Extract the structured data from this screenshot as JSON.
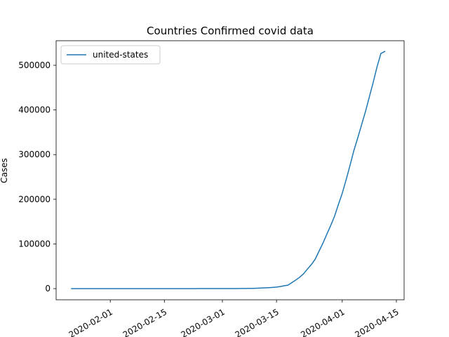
{
  "chart_data": {
    "type": "line",
    "title": "Countries Confirmed covid data",
    "xlabel": "",
    "ylabel": "Cases",
    "xlim": [
      "2020-01-18",
      "2020-04-17"
    ],
    "ylim": [
      -25000,
      555000
    ],
    "xticks": [
      "2020-02-01",
      "2020-02-15",
      "2020-03-01",
      "2020-03-15",
      "2020-04-01",
      "2020-04-15"
    ],
    "yticks": [
      0,
      100000,
      200000,
      300000,
      400000,
      500000
    ],
    "ytick_labels": [
      "0",
      "100000",
      "200000",
      "300000",
      "400000",
      "500000"
    ],
    "legend_position": "upper-left",
    "grid": false,
    "series": [
      {
        "name": "united-states",
        "color": "#1f77b4",
        "points": [
          [
            "2020-01-22",
            1
          ],
          [
            "2020-01-23",
            1
          ],
          [
            "2020-01-24",
            2
          ],
          [
            "2020-01-25",
            2
          ],
          [
            "2020-01-26",
            5
          ],
          [
            "2020-01-27",
            5
          ],
          [
            "2020-01-28",
            5
          ],
          [
            "2020-01-29",
            5
          ],
          [
            "2020-01-30",
            5
          ],
          [
            "2020-01-31",
            7
          ],
          [
            "2020-02-01",
            8
          ],
          [
            "2020-02-02",
            8
          ],
          [
            "2020-02-03",
            11
          ],
          [
            "2020-02-04",
            11
          ],
          [
            "2020-02-05",
            11
          ],
          [
            "2020-02-06",
            11
          ],
          [
            "2020-02-07",
            11
          ],
          [
            "2020-02-08",
            11
          ],
          [
            "2020-02-09",
            11
          ],
          [
            "2020-02-10",
            11
          ],
          [
            "2020-02-11",
            12
          ],
          [
            "2020-02-12",
            12
          ],
          [
            "2020-02-13",
            13
          ],
          [
            "2020-02-14",
            13
          ],
          [
            "2020-02-15",
            13
          ],
          [
            "2020-02-16",
            13
          ],
          [
            "2020-02-17",
            13
          ],
          [
            "2020-02-18",
            13
          ],
          [
            "2020-02-19",
            13
          ],
          [
            "2020-02-20",
            13
          ],
          [
            "2020-02-21",
            15
          ],
          [
            "2020-02-22",
            15
          ],
          [
            "2020-02-23",
            15
          ],
          [
            "2020-02-24",
            51
          ],
          [
            "2020-02-25",
            51
          ],
          [
            "2020-02-26",
            57
          ],
          [
            "2020-02-27",
            58
          ],
          [
            "2020-02-28",
            60
          ],
          [
            "2020-02-29",
            68
          ],
          [
            "2020-03-01",
            74
          ],
          [
            "2020-03-02",
            98
          ],
          [
            "2020-03-03",
            118
          ],
          [
            "2020-03-04",
            149
          ],
          [
            "2020-03-05",
            217
          ],
          [
            "2020-03-06",
            262
          ],
          [
            "2020-03-07",
            402
          ],
          [
            "2020-03-08",
            518
          ],
          [
            "2020-03-09",
            583
          ],
          [
            "2020-03-10",
            959
          ],
          [
            "2020-03-11",
            1281
          ],
          [
            "2020-03-12",
            1663
          ],
          [
            "2020-03-13",
            2179
          ],
          [
            "2020-03-14",
            2727
          ],
          [
            "2020-03-15",
            3499
          ],
          [
            "2020-03-16",
            4632
          ],
          [
            "2020-03-17",
            6421
          ],
          [
            "2020-03-18",
            7783
          ],
          [
            "2020-03-19",
            13747
          ],
          [
            "2020-03-20",
            19273
          ],
          [
            "2020-03-21",
            25600
          ],
          [
            "2020-03-22",
            33276
          ],
          [
            "2020-03-23",
            43847
          ],
          [
            "2020-03-24",
            53740
          ],
          [
            "2020-03-25",
            65778
          ],
          [
            "2020-03-26",
            83836
          ],
          [
            "2020-03-27",
            101657
          ],
          [
            "2020-03-28",
            121478
          ],
          [
            "2020-03-29",
            140886
          ],
          [
            "2020-03-30",
            161807
          ],
          [
            "2020-03-31",
            188172
          ],
          [
            "2020-04-01",
            213372
          ],
          [
            "2020-04-02",
            243453
          ],
          [
            "2020-04-03",
            275586
          ],
          [
            "2020-04-04",
            308850
          ],
          [
            "2020-04-05",
            337072
          ],
          [
            "2020-04-06",
            366667
          ],
          [
            "2020-04-07",
            396223
          ],
          [
            "2020-04-08",
            429052
          ],
          [
            "2020-04-09",
            461437
          ],
          [
            "2020-04-10",
            496535
          ],
          [
            "2020-04-11",
            526396
          ],
          [
            "2020-04-12",
            531000
          ]
        ]
      }
    ]
  }
}
